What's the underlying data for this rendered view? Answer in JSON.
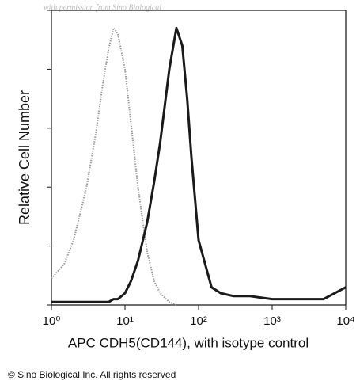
{
  "chart_data": {
    "type": "line",
    "watermark": "with permission from Sino Biological",
    "y_label": "Relative Cell Number",
    "x_label": "APC CDH5(CD144), with isotype control",
    "footer": "© Sino Biological Inc. All rights reserved",
    "x_scale": "log",
    "x": [
      1,
      1.5,
      2,
      3,
      4,
      5,
      6,
      7,
      8,
      10,
      12,
      15,
      20,
      25,
      30,
      40,
      50,
      60,
      70,
      80,
      100,
      150,
      200,
      300,
      500,
      1000,
      2000,
      5000,
      10000
    ],
    "series": [
      {
        "name": "isotype control",
        "color": "#9a9a9a",
        "dash": true,
        "values": [
          9,
          14,
          22,
          40,
          58,
          75,
          87,
          94,
          92,
          80,
          62,
          40,
          18,
          8,
          4,
          1,
          0,
          null,
          null,
          null,
          null,
          null,
          null,
          null,
          null,
          null,
          null,
          null,
          null
        ]
      },
      {
        "name": "CDH5",
        "color": "#1a1a1a",
        "dash": false,
        "values": [
          1,
          1,
          1,
          1,
          1,
          1,
          1,
          2,
          2,
          4,
          8,
          15,
          28,
          42,
          55,
          80,
          94,
          88,
          70,
          50,
          22,
          6,
          4,
          3,
          3,
          2,
          2,
          2,
          6
        ]
      }
    ],
    "xlim": [
      1,
      10000
    ],
    "xticks": [
      {
        "value": 1,
        "label": "10⁰"
      },
      {
        "value": 10,
        "label": "10¹"
      },
      {
        "value": 100,
        "label": "10²"
      },
      {
        "value": 1000,
        "label": "10³"
      },
      {
        "value": 10000,
        "label": "10⁴"
      }
    ],
    "ylim": [
      0,
      100
    ],
    "yticks": [
      0,
      20,
      40,
      60,
      80,
      100
    ]
  }
}
